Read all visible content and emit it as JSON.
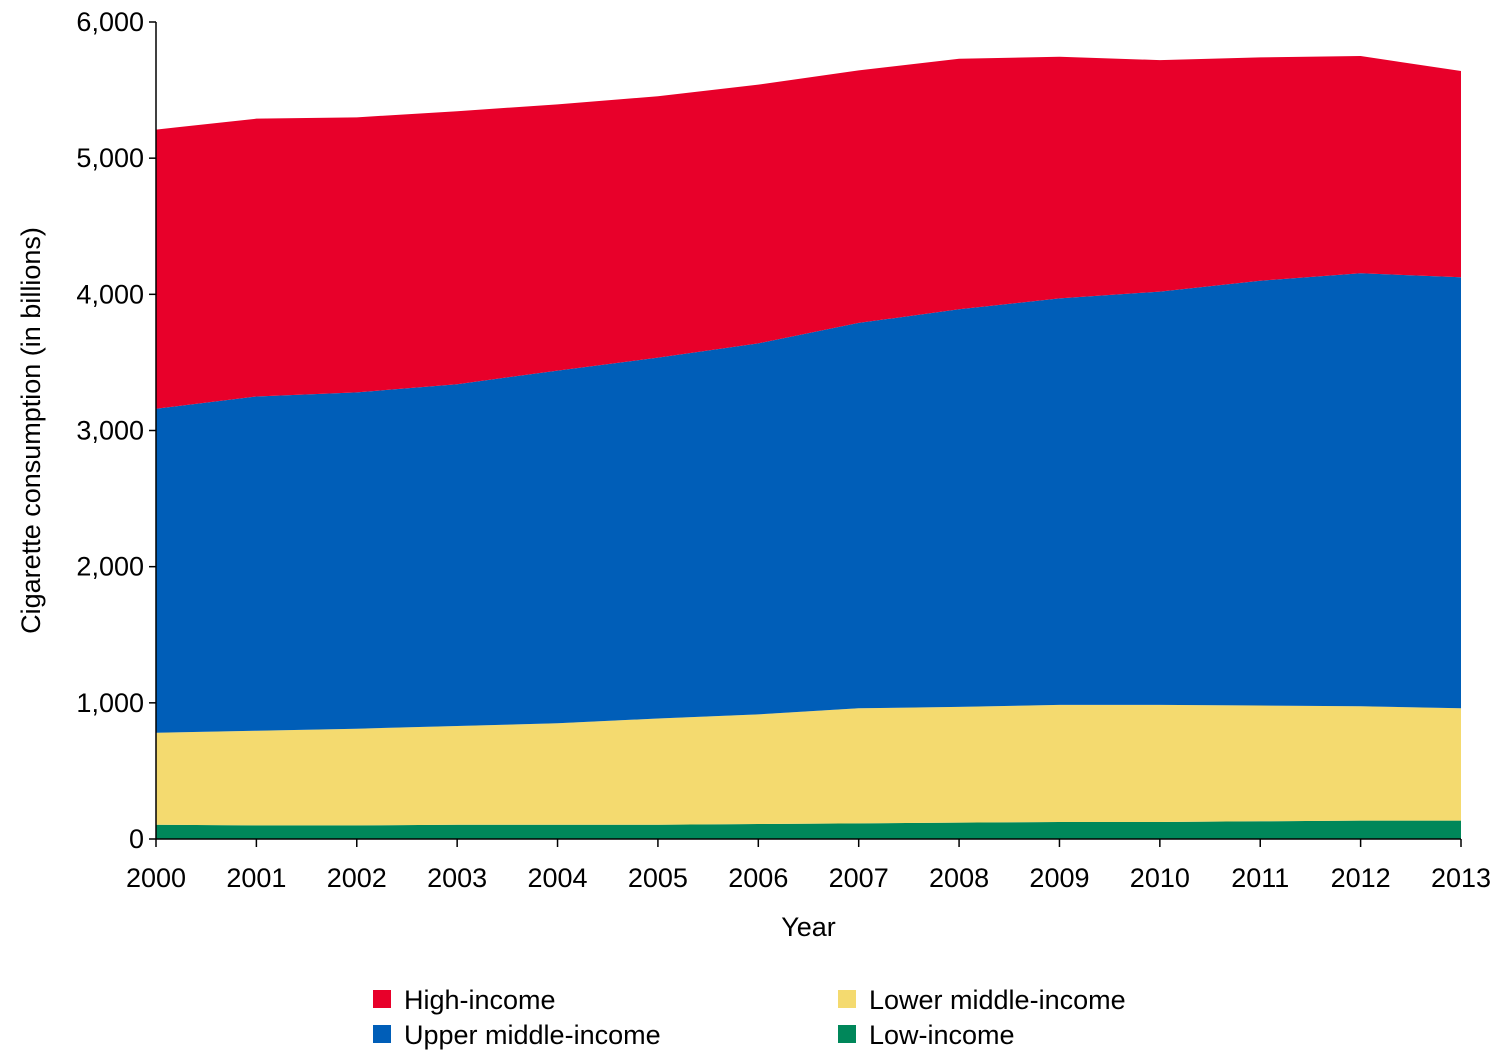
{
  "chart_data": {
    "type": "area",
    "stacked": true,
    "title": "",
    "xlabel": "Year",
    "ylabel": "Cigarette consumption (in billions)",
    "x": [
      2000,
      2001,
      2002,
      2003,
      2004,
      2005,
      2006,
      2007,
      2008,
      2009,
      2010,
      2011,
      2012,
      2013
    ],
    "x_tick_labels": [
      "2000",
      "2001",
      "2002",
      "2003",
      "2004",
      "2005",
      "2006",
      "2007",
      "2008",
      "2009",
      "2010",
      "2011",
      "2012",
      "2013"
    ],
    "ylim": [
      0,
      6000
    ],
    "y_ticks": [
      0,
      1000,
      2000,
      3000,
      4000,
      5000,
      6000
    ],
    "y_tick_labels": [
      "0",
      "1,000",
      "2,000",
      "3,000",
      "4,000",
      "5,000",
      "6,000"
    ],
    "grid": false,
    "legend_position": "bottom",
    "series": [
      {
        "name": "Low-income",
        "color": "#00875A",
        "values": [
          105,
          100,
          100,
          105,
          105,
          105,
          110,
          115,
          120,
          125,
          125,
          130,
          135,
          135
        ]
      },
      {
        "name": "Lower middle-income",
        "color": "#F4DA6F",
        "values": [
          675,
          695,
          710,
          725,
          745,
          780,
          805,
          845,
          850,
          860,
          860,
          850,
          840,
          825
        ]
      },
      {
        "name": "Upper middle-income",
        "color": "#005EB8",
        "values": [
          2380,
          2455,
          2470,
          2510,
          2590,
          2650,
          2725,
          2830,
          2920,
          2985,
          3035,
          3120,
          3180,
          3165
        ]
      },
      {
        "name": "High-income",
        "color": "#E8002A",
        "values": [
          2050,
          2040,
          2020,
          2005,
          1955,
          1920,
          1900,
          1855,
          1840,
          1775,
          1700,
          1640,
          1595,
          1515
        ]
      }
    ],
    "legend": [
      {
        "label": "High-income",
        "color": "#E8002A"
      },
      {
        "label": "Lower middle-income",
        "color": "#F4DA6F"
      },
      {
        "label": "Upper middle-income",
        "color": "#005EB8"
      },
      {
        "label": "Low-income",
        "color": "#00875A"
      }
    ]
  }
}
